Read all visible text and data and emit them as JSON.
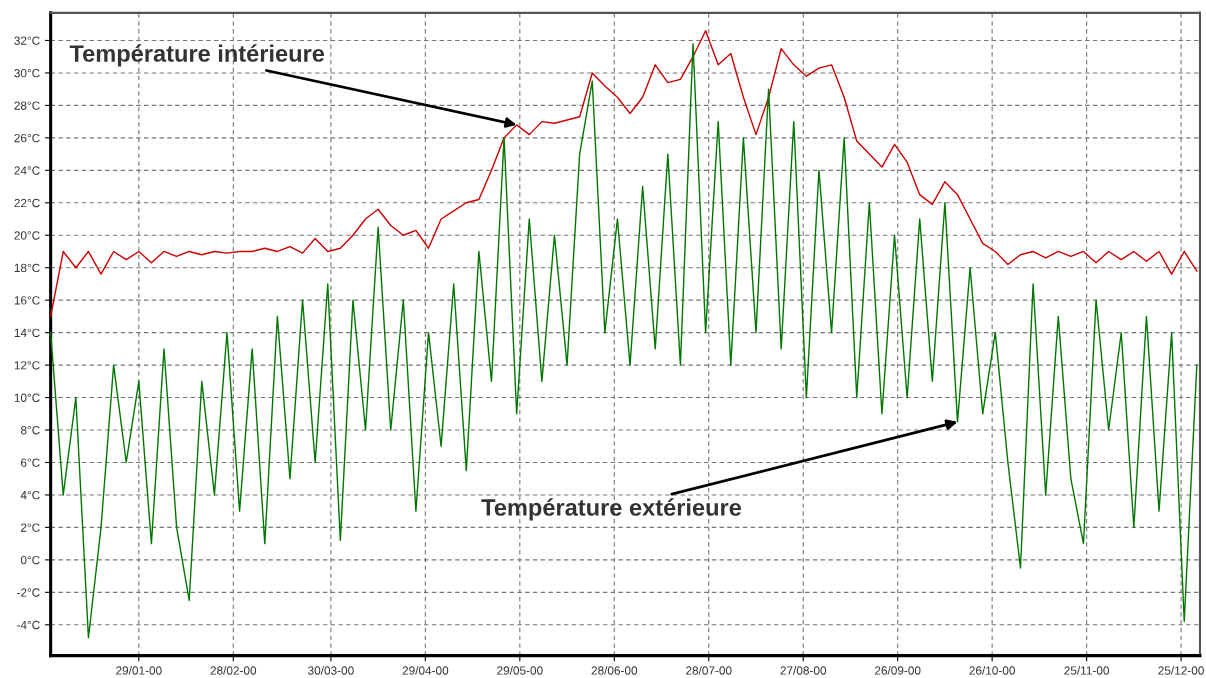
{
  "chart_data": {
    "type": "line",
    "x": [
      "2000-01-01",
      "2000-01-05",
      "2000-01-09",
      "2000-01-13",
      "2000-01-17",
      "2000-01-21",
      "2000-01-25",
      "2000-01-29",
      "2000-02-02",
      "2000-02-06",
      "2000-02-10",
      "2000-02-14",
      "2000-02-18",
      "2000-02-22",
      "2000-02-26",
      "2000-03-01",
      "2000-03-05",
      "2000-03-09",
      "2000-03-13",
      "2000-03-17",
      "2000-03-21",
      "2000-03-25",
      "2000-03-29",
      "2000-04-02",
      "2000-04-06",
      "2000-04-10",
      "2000-04-14",
      "2000-04-18",
      "2000-04-22",
      "2000-04-26",
      "2000-04-30",
      "2000-05-04",
      "2000-05-08",
      "2000-05-12",
      "2000-05-16",
      "2000-05-20",
      "2000-05-24",
      "2000-05-28",
      "2000-06-01",
      "2000-06-05",
      "2000-06-09",
      "2000-06-13",
      "2000-06-17",
      "2000-06-21",
      "2000-06-25",
      "2000-06-29",
      "2000-07-03",
      "2000-07-07",
      "2000-07-11",
      "2000-07-15",
      "2000-07-19",
      "2000-07-23",
      "2000-07-27",
      "2000-07-31",
      "2000-08-04",
      "2000-08-08",
      "2000-08-12",
      "2000-08-16",
      "2000-08-20",
      "2000-08-24",
      "2000-08-28",
      "2000-09-01",
      "2000-09-05",
      "2000-09-09",
      "2000-09-13",
      "2000-09-17",
      "2000-09-21",
      "2000-09-25",
      "2000-09-29",
      "2000-10-03",
      "2000-10-07",
      "2000-10-11",
      "2000-10-15",
      "2000-10-19",
      "2000-10-23",
      "2000-10-27",
      "2000-10-31",
      "2000-11-04",
      "2000-11-08",
      "2000-11-12",
      "2000-11-16",
      "2000-11-20",
      "2000-11-24",
      "2000-11-28",
      "2000-12-02",
      "2000-12-06",
      "2000-12-10",
      "2000-12-14",
      "2000-12-18",
      "2000-12-22",
      "2000-12-26",
      "2000-12-30"
    ],
    "series": [
      {
        "color": "#cc0000",
        "values": [
          15,
          19,
          18,
          19,
          17.6,
          19,
          18.5,
          19,
          18.3,
          19,
          18.7,
          19,
          18.8,
          19,
          18.9,
          19,
          19,
          19.2,
          19,
          19.3,
          18.9,
          19.8,
          19,
          19.2,
          20,
          21,
          21.6,
          20.6,
          20,
          20.3,
          19.2,
          21,
          21.5,
          22,
          22.2,
          24,
          26,
          26.8,
          26.2,
          27,
          26.9,
          27.1,
          27.3,
          30,
          29.2,
          28.5,
          27.5,
          28.5,
          30.5,
          29.4,
          29.6,
          31,
          32.6,
          30.5,
          31.2,
          28.5,
          26.2,
          28.5,
          31.5,
          30.5,
          29.8,
          30.3,
          30.5,
          28.5,
          25.8,
          25,
          24.2,
          25.6,
          24.5,
          22.5,
          21.9,
          23.3,
          22.5,
          21,
          19.5,
          19,
          18.2,
          18.8,
          19,
          18.6,
          19,
          18.7,
          19,
          18.3,
          19,
          18.5,
          19,
          18.4,
          19,
          17.6,
          19,
          17.8
        ]
      },
      {
        "color": "#007700",
        "values": [
          14,
          4,
          10,
          -4.8,
          2,
          12,
          6,
          11,
          1,
          13,
          2,
          -2.5,
          11,
          4,
          14,
          3,
          13,
          1,
          15,
          5,
          16,
          6,
          17,
          1.2,
          16,
          8,
          20.5,
          8,
          16,
          3,
          14,
          7,
          17,
          5.5,
          19,
          11,
          26,
          9,
          21,
          11,
          20,
          12,
          25,
          29.5,
          14,
          21,
          12,
          23,
          13,
          25,
          12,
          31.8,
          14,
          27,
          12,
          26,
          14,
          29,
          13,
          27,
          10,
          24,
          14,
          26,
          10,
          22,
          9,
          20,
          10,
          21,
          11,
          22,
          8.5,
          18,
          9,
          14,
          6,
          -0.5,
          17,
          4,
          15,
          5,
          1,
          16,
          8,
          14,
          2,
          15,
          3,
          14,
          -3.8,
          12
        ]
      }
    ],
    "xlim": [
      "2000-01-01",
      "2000-12-31"
    ],
    "xticks": [
      {
        "value": "2000-01-29",
        "label": "29/01-00"
      },
      {
        "value": "2000-02-28",
        "label": "28/02-00"
      },
      {
        "value": "2000-03-30",
        "label": "30/03-00"
      },
      {
        "value": "2000-04-29",
        "label": "29/04-00"
      },
      {
        "value": "2000-05-29",
        "label": "29/05-00"
      },
      {
        "value": "2000-06-28",
        "label": "28/06-00"
      },
      {
        "value": "2000-07-28",
        "label": "28/07-00"
      },
      {
        "value": "2000-08-27",
        "label": "27/08-00"
      },
      {
        "value": "2000-09-26",
        "label": "26/09-00"
      },
      {
        "value": "2000-10-26",
        "label": "26/10-00"
      },
      {
        "value": "2000-11-25",
        "label": "25/11-00"
      },
      {
        "value": "2000-12-25",
        "label": "25/12-00"
      }
    ],
    "ylim": [
      -5.9,
      33.7
    ],
    "yticks": [
      {
        "value": -4,
        "label": "-4°C"
      },
      {
        "value": -2,
        "label": "-2°C"
      },
      {
        "value": 0,
        "label": "0°C"
      },
      {
        "value": 2,
        "label": "2°C"
      },
      {
        "value": 4,
        "label": "4°C"
      },
      {
        "value": 6,
        "label": "6°C"
      },
      {
        "value": 8,
        "label": "8°C"
      },
      {
        "value": 10,
        "label": "10°C"
      },
      {
        "value": 12,
        "label": "12°C"
      },
      {
        "value": 14,
        "label": "14°C"
      },
      {
        "value": 16,
        "label": "16°C"
      },
      {
        "value": 18,
        "label": "18°C"
      },
      {
        "value": 20,
        "label": "20°C"
      },
      {
        "value": 22,
        "label": "22°C"
      },
      {
        "value": 24,
        "label": "24°C"
      },
      {
        "value": 26,
        "label": "26°C"
      },
      {
        "value": 28,
        "label": "28°C"
      },
      {
        "value": 30,
        "label": "30°C"
      },
      {
        "value": 32,
        "label": "32°C"
      }
    ],
    "grid": true,
    "line_style": "solid",
    "marker": "none",
    "annotations": [
      {
        "text": "Température intérieure",
        "x": "2000-05-28",
        "y": 26.8
      },
      {
        "text": "Température extérieure",
        "x": "2000-10-15",
        "y": 8.5
      }
    ]
  }
}
